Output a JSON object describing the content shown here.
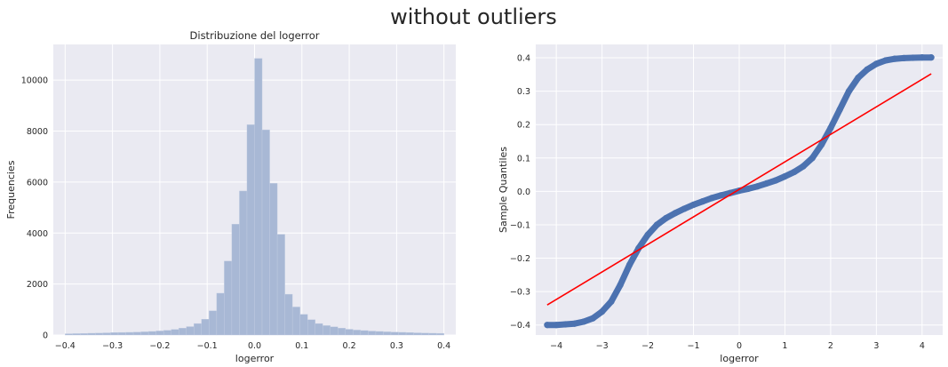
{
  "figure": {
    "title": "without outliers"
  },
  "colors": {
    "axes_background": "#EAEAF2",
    "grid": "#FFFFFF",
    "hist_fill": "#A8B8D5",
    "scatter_fill": "#4C72B0",
    "reference_line": "#FF0000"
  },
  "chart_data": [
    {
      "type": "bar",
      "subtype": "histogram",
      "title": "Distribuzione del logerror",
      "xlabel": "logerror",
      "ylabel": "Frequencies",
      "xlim": [
        -0.425,
        0.425
      ],
      "ylim": [
        0,
        11400
      ],
      "grid": true,
      "xticks": [
        -0.4,
        -0.3,
        -0.2,
        -0.1,
        0.0,
        0.1,
        0.2,
        0.3,
        0.4
      ],
      "yticks": [
        0,
        2000,
        4000,
        6000,
        8000,
        10000
      ],
      "bin_edges": [
        -0.4,
        -0.384,
        -0.368,
        -0.352,
        -0.336,
        -0.32,
        -0.304,
        -0.288,
        -0.272,
        -0.256,
        -0.24,
        -0.224,
        -0.208,
        -0.192,
        -0.176,
        -0.16,
        -0.144,
        -0.128,
        -0.112,
        -0.096,
        -0.08,
        -0.064,
        -0.048,
        -0.032,
        -0.016,
        0.0,
        0.016,
        0.032,
        0.048,
        0.064,
        0.08,
        0.096,
        0.112,
        0.128,
        0.144,
        0.16,
        0.176,
        0.192,
        0.208,
        0.224,
        0.24,
        0.256,
        0.272,
        0.288,
        0.304,
        0.32,
        0.336,
        0.352,
        0.368,
        0.384,
        0.4
      ],
      "values": [
        50,
        55,
        60,
        70,
        75,
        85,
        95,
        100,
        105,
        115,
        125,
        140,
        160,
        185,
        220,
        270,
        330,
        450,
        620,
        950,
        1640,
        2900,
        4350,
        5650,
        8250,
        10850,
        8050,
        5950,
        3950,
        1600,
        1100,
        810,
        600,
        450,
        370,
        320,
        270,
        225,
        195,
        175,
        155,
        140,
        125,
        115,
        105,
        95,
        85,
        75,
        70,
        65
      ]
    },
    {
      "type": "scatter",
      "subtype": "qq-plot",
      "title": "",
      "xlabel": "logerror",
      "ylabel": "Sample Quantiles",
      "xlim": [
        -4.45,
        4.45
      ],
      "ylim": [
        -0.43,
        0.44
      ],
      "grid": true,
      "xticks": [
        -4,
        -3,
        -2,
        -1,
        0,
        1,
        2,
        3,
        4
      ],
      "yticks": [
        -0.4,
        -0.3,
        -0.2,
        -0.1,
        0.0,
        0.1,
        0.2,
        0.3,
        0.4
      ],
      "series": [
        {
          "points": [
            [
              -4.2,
              -0.4
            ],
            [
              -4.0,
              -0.4
            ],
            [
              -3.8,
              -0.398
            ],
            [
              -3.6,
              -0.396
            ],
            [
              -3.4,
              -0.39
            ],
            [
              -3.2,
              -0.38
            ],
            [
              -3.0,
              -0.36
            ],
            [
              -2.8,
              -0.33
            ],
            [
              -2.6,
              -0.28
            ],
            [
              -2.4,
              -0.22
            ],
            [
              -2.2,
              -0.17
            ],
            [
              -2.0,
              -0.13
            ],
            [
              -1.8,
              -0.1
            ],
            [
              -1.6,
              -0.08
            ],
            [
              -1.4,
              -0.065
            ],
            [
              -1.2,
              -0.052
            ],
            [
              -1.0,
              -0.04
            ],
            [
              -0.8,
              -0.03
            ],
            [
              -0.6,
              -0.02
            ],
            [
              -0.4,
              -0.012
            ],
            [
              -0.2,
              -0.005
            ],
            [
              0.0,
              0.002
            ],
            [
              0.2,
              0.008
            ],
            [
              0.4,
              0.015
            ],
            [
              0.6,
              0.024
            ],
            [
              0.8,
              0.033
            ],
            [
              1.0,
              0.045
            ],
            [
              1.2,
              0.058
            ],
            [
              1.4,
              0.075
            ],
            [
              1.6,
              0.1
            ],
            [
              1.8,
              0.14
            ],
            [
              2.0,
              0.19
            ],
            [
              2.2,
              0.245
            ],
            [
              2.4,
              0.3
            ],
            [
              2.6,
              0.34
            ],
            [
              2.8,
              0.365
            ],
            [
              3.0,
              0.382
            ],
            [
              3.2,
              0.392
            ],
            [
              3.4,
              0.397
            ],
            [
              3.6,
              0.399
            ],
            [
              3.8,
              0.4
            ],
            [
              4.0,
              0.401
            ],
            [
              4.2,
              0.401
            ]
          ],
          "reference_line": [
            [
              -4.2,
              -0.34
            ],
            [
              4.2,
              0.352
            ]
          ]
        }
      ]
    }
  ]
}
